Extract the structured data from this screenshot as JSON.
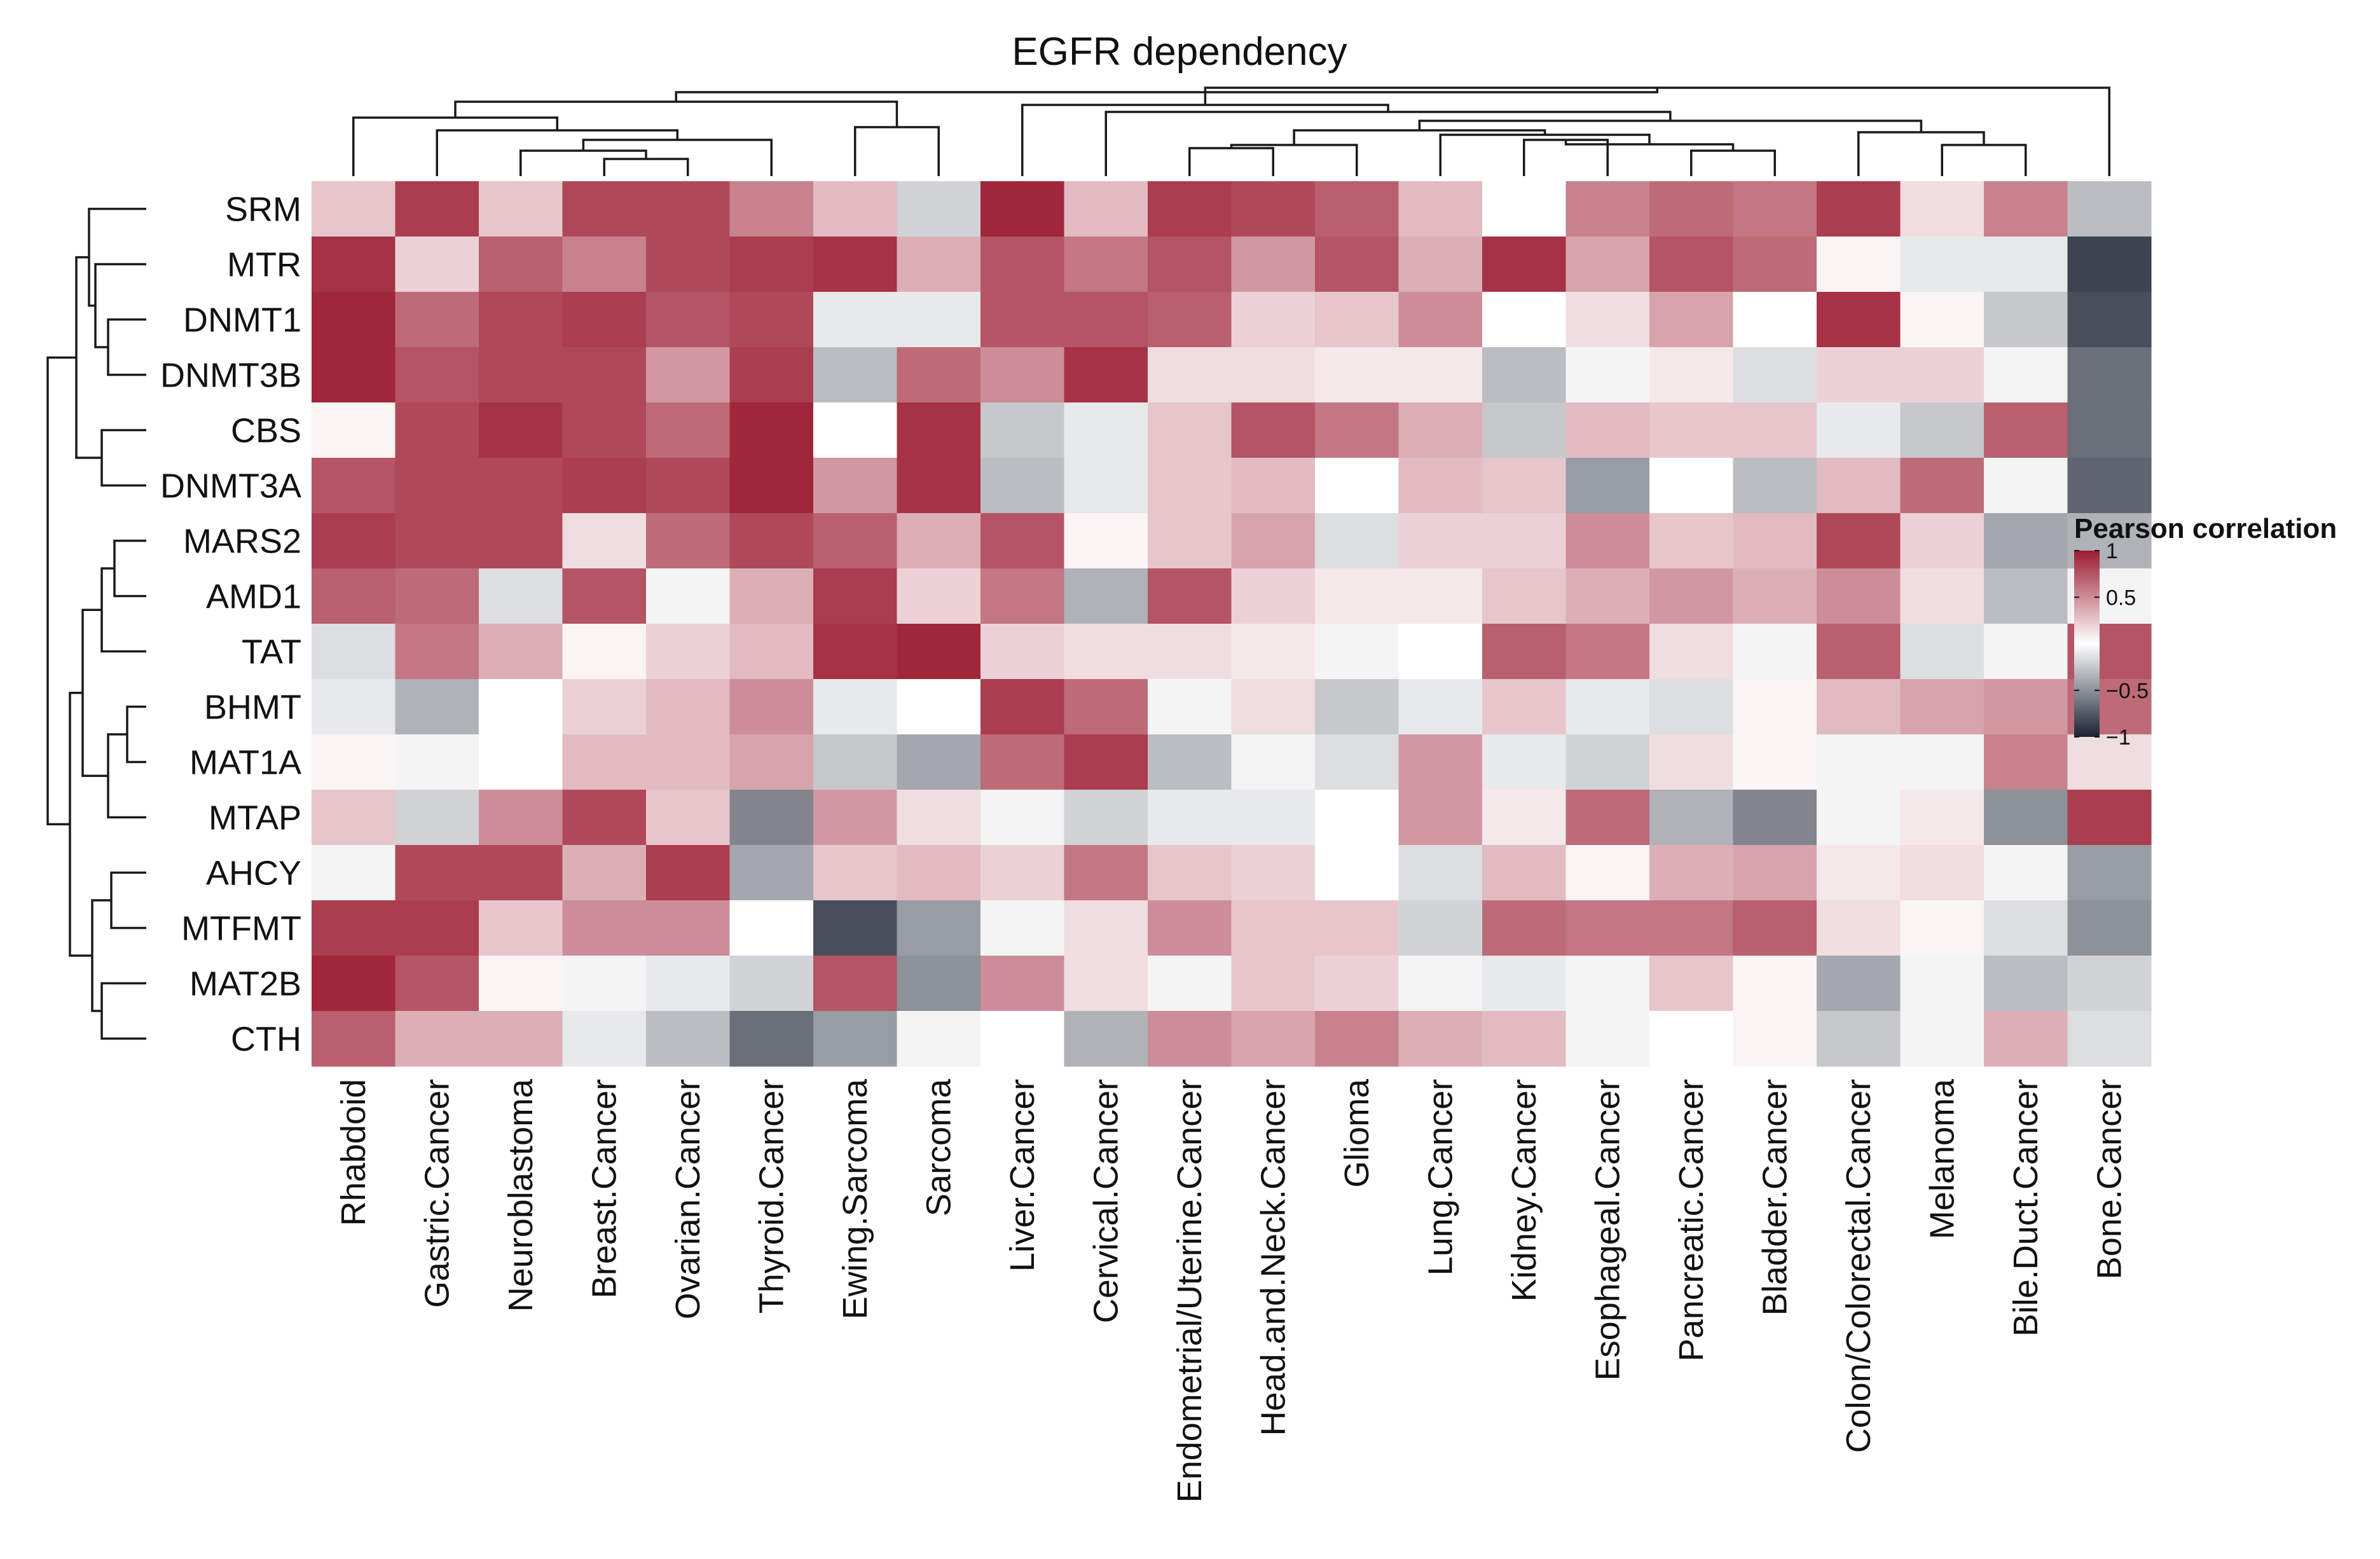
{
  "chart_data": {
    "type": "heatmap",
    "title": "EGFR dependency",
    "rows": [
      "SRM",
      "MTR",
      "DNMT1",
      "DNMT3B",
      "CBS",
      "DNMT3A",
      "MARS2",
      "AMD1",
      "TAT",
      "BHMT",
      "MAT1A",
      "MTAP",
      "AHCY",
      "MTFMT",
      "MAT2B",
      "CTH"
    ],
    "columns": [
      "Rhabdoid",
      "Gastric.Cancer",
      "Neuroblastoma",
      "Breast.Cancer",
      "Ovarian.Cancer",
      "Thyroid.Cancer",
      "Ewing.Sarcoma",
      "Sarcoma",
      "Liver.Cancer",
      "Cervical.Cancer",
      "Endometrial/Uterine.Cancer",
      "Head.and.Neck.Cancer",
      "Glioma",
      "Lung.Cancer",
      "Kidney.Cancer",
      "Esophageal.Cancer",
      "Pancreatic.Cancer",
      "Bladder.Cancer",
      "Colon/Colorectal.Cancer",
      "Melanoma",
      "Bile.Duct.Cancer",
      "Bone.Cancer"
    ],
    "values": [
      [
        0.25,
        0.85,
        0.25,
        0.8,
        0.8,
        0.55,
        0.3,
        -0.2,
        0.95,
        0.3,
        0.85,
        0.8,
        0.7,
        0.3,
        0.0,
        0.55,
        0.65,
        0.6,
        0.85,
        0.15,
        0.55,
        -0.3
      ],
      [
        0.9,
        0.2,
        0.7,
        0.55,
        0.8,
        0.85,
        0.9,
        0.35,
        0.75,
        0.6,
        0.75,
        0.45,
        0.75,
        0.35,
        0.9,
        0.4,
        0.75,
        0.65,
        0.05,
        -0.1,
        -0.1,
        -0.85
      ],
      [
        0.95,
        0.65,
        0.8,
        0.85,
        0.75,
        0.8,
        -0.1,
        -0.1,
        0.75,
        0.75,
        0.7,
        0.2,
        0.25,
        0.5,
        0.0,
        0.15,
        0.4,
        0.0,
        0.9,
        0.05,
        -0.25,
        -0.8
      ],
      [
        0.95,
        0.75,
        0.8,
        0.8,
        0.45,
        0.85,
        -0.3,
        0.65,
        0.5,
        0.9,
        0.15,
        0.15,
        0.1,
        0.1,
        -0.3,
        -0.05,
        0.1,
        -0.15,
        0.2,
        0.2,
        -0.05,
        -0.65
      ],
      [
        0.05,
        0.8,
        0.9,
        0.8,
        0.65,
        0.95,
        0.0,
        0.9,
        -0.25,
        -0.1,
        0.25,
        0.75,
        0.6,
        0.35,
        -0.25,
        0.3,
        0.25,
        0.25,
        -0.1,
        -0.25,
        0.7,
        -0.65
      ],
      [
        0.75,
        0.8,
        0.8,
        0.85,
        0.8,
        0.95,
        0.45,
        0.9,
        -0.3,
        -0.1,
        0.25,
        0.3,
        0.0,
        0.3,
        0.25,
        -0.45,
        0.0,
        -0.3,
        0.3,
        0.65,
        -0.05,
        -0.7
      ],
      [
        0.85,
        0.8,
        0.8,
        0.15,
        0.65,
        0.8,
        0.7,
        0.35,
        0.75,
        0.05,
        0.25,
        0.4,
        -0.15,
        0.2,
        0.2,
        0.5,
        0.25,
        0.3,
        0.8,
        0.2,
        -0.4,
        -0.35
      ],
      [
        0.7,
        0.65,
        -0.15,
        0.75,
        -0.05,
        0.35,
        0.85,
        0.2,
        0.6,
        -0.35,
        0.75,
        0.2,
        0.1,
        0.1,
        0.25,
        0.35,
        0.45,
        0.35,
        0.5,
        0.15,
        -0.3,
        -0.05
      ],
      [
        -0.15,
        0.6,
        0.35,
        0.05,
        0.2,
        0.3,
        0.9,
        0.95,
        0.2,
        0.15,
        0.15,
        0.1,
        -0.05,
        0.0,
        0.7,
        0.6,
        0.15,
        -0.05,
        0.7,
        -0.15,
        -0.05,
        0.75
      ],
      [
        -0.1,
        -0.35,
        0.0,
        0.2,
        0.3,
        0.5,
        -0.1,
        0.0,
        0.85,
        0.65,
        -0.05,
        0.15,
        -0.25,
        -0.1,
        0.25,
        -0.1,
        -0.15,
        0.05,
        0.3,
        0.4,
        0.45,
        0.65
      ],
      [
        0.05,
        -0.05,
        0.0,
        0.3,
        0.3,
        0.4,
        -0.25,
        -0.4,
        0.65,
        0.85,
        -0.3,
        -0.05,
        -0.15,
        0.45,
        -0.1,
        -0.2,
        0.15,
        0.05,
        -0.05,
        -0.05,
        0.55,
        0.15
      ],
      [
        0.25,
        -0.2,
        0.5,
        0.8,
        0.25,
        -0.55,
        0.45,
        0.15,
        -0.05,
        -0.2,
        -0.1,
        -0.1,
        0.0,
        0.45,
        0.1,
        0.65,
        -0.35,
        -0.55,
        -0.05,
        0.1,
        -0.5,
        0.85
      ],
      [
        -0.05,
        0.8,
        0.8,
        0.35,
        0.85,
        -0.4,
        0.25,
        0.3,
        0.2,
        0.6,
        0.25,
        0.2,
        0.0,
        -0.15,
        0.3,
        0.05,
        0.35,
        0.4,
        0.1,
        0.15,
        -0.05,
        -0.45
      ],
      [
        0.85,
        0.85,
        0.25,
        0.5,
        0.5,
        0.0,
        -0.8,
        -0.45,
        -0.05,
        0.15,
        0.5,
        0.25,
        0.25,
        -0.2,
        0.65,
        0.6,
        0.6,
        0.7,
        0.15,
        0.05,
        -0.15,
        -0.5
      ],
      [
        0.95,
        0.75,
        0.05,
        -0.05,
        -0.1,
        -0.2,
        0.75,
        -0.5,
        0.5,
        0.15,
        -0.05,
        0.25,
        0.2,
        -0.05,
        -0.1,
        -0.05,
        0.25,
        0.05,
        -0.4,
        -0.05,
        -0.3,
        -0.2
      ],
      [
        0.7,
        0.35,
        0.35,
        -0.1,
        -0.3,
        -0.65,
        -0.45,
        -0.05,
        0.0,
        -0.35,
        0.5,
        0.4,
        0.55,
        0.35,
        0.3,
        -0.05,
        0.0,
        0.05,
        -0.25,
        -0.05,
        0.35,
        -0.15
      ]
    ],
    "colorbar": {
      "title": "Pearson correlation",
      "ticks": [
        {
          "value": 1,
          "label": "1"
        },
        {
          "value": 0.5,
          "label": "0.5"
        },
        {
          "value": -0.5,
          "label": "−0.5"
        },
        {
          "value": -1,
          "label": "−1"
        }
      ],
      "range": [
        -1,
        1
      ]
    },
    "colors": {
      "high": "#9b1b30",
      "mid": "#ffffff",
      "low": "#1b2232"
    },
    "row_clustering": "dendrogram left",
    "column_clustering": "dendrogram top"
  }
}
